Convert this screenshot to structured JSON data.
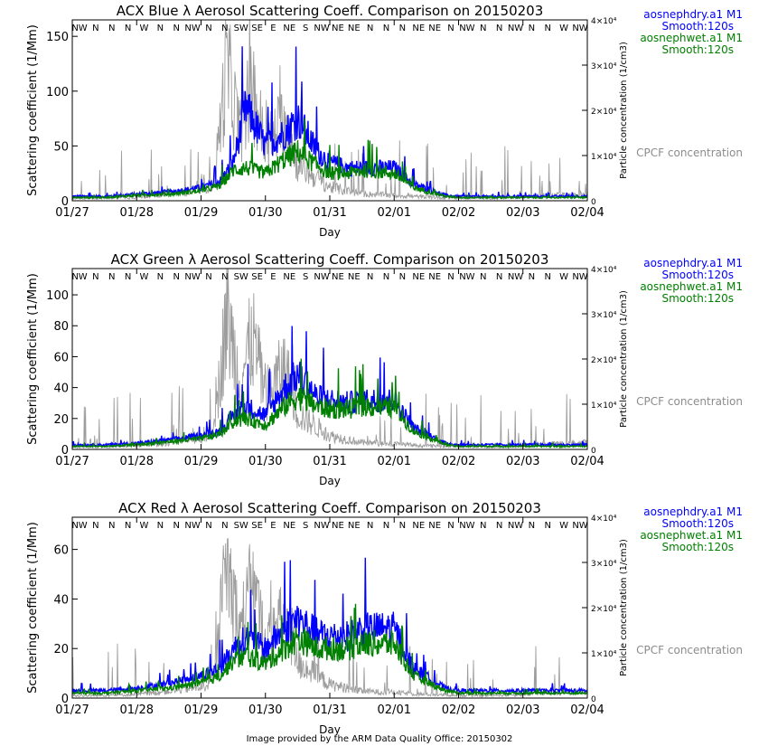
{
  "colors": {
    "dry": "#0000ff",
    "wet": "#008000",
    "cpcf": "#8c8c8c",
    "footer": "#cc0000"
  },
  "wind_labels": [
    "NW",
    "N",
    "N",
    "N",
    "W",
    "N",
    "N",
    "NW",
    "N",
    "N",
    "SW",
    "SE",
    "E",
    "NE",
    "S",
    "NW",
    "NE",
    "NE",
    "N",
    "N",
    "N",
    "NE",
    "NE",
    "N",
    "NW",
    "N",
    "N",
    "NW",
    "N",
    "N",
    "W",
    "NW"
  ],
  "right_axis": {
    "label": "Particle concentration (1/cm3)",
    "ticks": [
      "0",
      "1×10⁴",
      "2×10⁴",
      "3×10⁴",
      "4×10⁴"
    ]
  },
  "legend": {
    "dry_name": "aosnephdry.a1 M1",
    "dry_smooth": "Smooth:120s",
    "wet_name": "aosnephwet.a1 M1",
    "wet_smooth": "Smooth:120s",
    "cpcf": "CPCF concentration"
  },
  "footer": "Image provided by the ARM Data Quality Office: 20150302",
  "chart_data": [
    {
      "type": "line",
      "title": "ACX Blue λ Aerosol Scattering Coeff. Comparison on 20150203",
      "xlabel": "Day",
      "ylabel": "Scattering coefficient (1/Mm)",
      "x_ticks": [
        "01/27",
        "01/28",
        "01/29",
        "01/30",
        "01/31",
        "02/01",
        "02/02",
        "02/03",
        "02/04"
      ],
      "xlim": [
        0,
        8
      ],
      "ylim": [
        0,
        165
      ],
      "y_ticks": [
        0,
        50,
        100,
        150
      ],
      "y2lim": [
        0,
        40000
      ],
      "series": [
        {
          "name": "aosnephdry.a1 M1 (Smooth:120s)",
          "x": [
            0,
            0.5,
            1,
            1.5,
            2,
            2.3,
            2.5,
            2.7,
            3,
            3.3,
            3.5,
            3.8,
            4,
            4.3,
            4.5,
            5,
            5.3,
            5.8,
            6,
            6.5,
            7,
            7.5,
            8
          ],
          "values": [
            4,
            4,
            6,
            8,
            12,
            18,
            35,
            85,
            50,
            62,
            75,
            45,
            35,
            30,
            30,
            30,
            15,
            5,
            4,
            4,
            4,
            4,
            4
          ]
        },
        {
          "name": "aosnephwet.a1 M1 (Smooth:120s)",
          "x": [
            0,
            0.5,
            1,
            1.5,
            2,
            2.3,
            2.5,
            2.7,
            3,
            3.3,
            3.5,
            3.8,
            4,
            4.3,
            4.5,
            5,
            5.3,
            5.8,
            6,
            6.5,
            7,
            7.5,
            8
          ],
          "values": [
            3,
            3,
            5,
            6,
            9,
            14,
            28,
            30,
            25,
            38,
            45,
            32,
            25,
            25,
            28,
            25,
            12,
            4,
            3,
            3,
            3,
            3,
            3
          ]
        },
        {
          "name": "CPCF concentration",
          "axis": "right",
          "x": [
            0,
            0.5,
            1,
            1.5,
            2,
            2.2,
            2.4,
            2.6,
            2.8,
            3,
            3.3,
            3.5,
            4,
            4.5,
            5,
            5.5,
            6,
            6.5,
            7,
            7.5,
            8
          ],
          "values": [
            500,
            600,
            800,
            1500,
            2500,
            4000,
            30000,
            15000,
            25000,
            12000,
            18000,
            8000,
            3000,
            1500,
            1200,
            800,
            600,
            600,
            800,
            1200,
            1500
          ]
        }
      ]
    },
    {
      "type": "line",
      "title": "ACX Green λ Aerosol Scattering Coeff. Comparison on 20150203",
      "xlabel": "Day",
      "ylabel": "Scattering coefficient (1/Mm)",
      "x_ticks": [
        "01/27",
        "01/28",
        "01/29",
        "01/30",
        "01/31",
        "02/01",
        "02/02",
        "02/03",
        "02/04"
      ],
      "xlim": [
        0,
        8
      ],
      "ylim": [
        0,
        117
      ],
      "y_ticks": [
        0,
        20,
        40,
        60,
        80,
        100
      ],
      "y2lim": [
        0,
        40000
      ],
      "series": [
        {
          "name": "aosnephdry.a1 M1 (Smooth:120s)",
          "x": [
            0,
            0.5,
            1,
            1.5,
            2,
            2.3,
            2.5,
            2.7,
            3,
            3.3,
            3.5,
            3.8,
            4,
            4.3,
            4.5,
            5,
            5.3,
            5.8,
            6,
            6.5,
            7,
            7.5,
            8
          ],
          "values": [
            3,
            3,
            4,
            6,
            9,
            12,
            22,
            28,
            22,
            40,
            48,
            34,
            32,
            30,
            32,
            32,
            14,
            4,
            3,
            3,
            3,
            3,
            3
          ]
        },
        {
          "name": "aosnephwet.a1 M1 (Smooth:120s)",
          "x": [
            0,
            0.5,
            1,
            1.5,
            2,
            2.3,
            2.5,
            2.7,
            3,
            3.3,
            3.5,
            3.8,
            4,
            4.3,
            4.5,
            5,
            5.3,
            5.8,
            6,
            6.5,
            7,
            7.5,
            8
          ],
          "values": [
            2,
            2,
            3,
            5,
            7,
            10,
            18,
            20,
            16,
            28,
            34,
            28,
            26,
            26,
            28,
            27,
            12,
            3,
            2,
            2,
            2,
            2,
            2
          ]
        },
        {
          "name": "CPCF concentration",
          "axis": "right",
          "x": [
            0,
            0.5,
            1,
            1.5,
            2,
            2.2,
            2.4,
            2.6,
            2.8,
            3,
            3.3,
            3.5,
            4,
            4.5,
            5,
            5.5,
            6,
            6.5,
            7,
            7.5,
            8
          ],
          "values": [
            500,
            600,
            800,
            1500,
            2500,
            4000,
            30000,
            15000,
            25000,
            12000,
            18000,
            8000,
            3000,
            1500,
            1200,
            800,
            600,
            600,
            800,
            1200,
            1500
          ]
        }
      ]
    },
    {
      "type": "line",
      "title": "ACX Red λ Aerosol Scattering Coeff. Comparison on 20150203",
      "xlabel": "Day",
      "ylabel": "Scattering coefficient (1/Mm)",
      "x_ticks": [
        "01/27",
        "01/28",
        "01/29",
        "01/30",
        "01/31",
        "02/01",
        "02/02",
        "02/03",
        "02/04"
      ],
      "xlim": [
        0,
        8
      ],
      "ylim": [
        0,
        73
      ],
      "y_ticks": [
        0,
        20,
        40,
        60
      ],
      "y2lim": [
        0,
        40000
      ],
      "series": [
        {
          "name": "aosnephdry.a1 M1 (Smooth:120s)",
          "x": [
            0,
            0.5,
            1,
            1.5,
            2,
            2.3,
            2.5,
            2.7,
            3,
            3.3,
            3.5,
            3.8,
            4,
            4.3,
            4.5,
            5,
            5.3,
            5.8,
            6,
            6.5,
            7,
            7.5,
            8
          ],
          "values": [
            3,
            3,
            4,
            6,
            9,
            12,
            20,
            24,
            20,
            28,
            32,
            26,
            25,
            25,
            28,
            28,
            12,
            4,
            3,
            3,
            3,
            3,
            3
          ]
        },
        {
          "name": "aosnephwet.a1 M1 (Smooth:120s)",
          "x": [
            0,
            0.5,
            1,
            1.5,
            2,
            2.3,
            2.5,
            2.7,
            3,
            3.3,
            3.5,
            3.8,
            4,
            4.3,
            4.5,
            5,
            5.3,
            5.8,
            6,
            6.5,
            7,
            7.5,
            8
          ],
          "values": [
            2,
            2,
            3,
            4,
            6,
            9,
            15,
            17,
            14,
            20,
            24,
            20,
            20,
            20,
            22,
            22,
            9,
            3,
            2,
            2,
            2,
            2,
            2
          ]
        },
        {
          "name": "CPCF concentration",
          "axis": "right",
          "x": [
            0,
            0.5,
            1,
            1.5,
            2,
            2.2,
            2.4,
            2.6,
            2.8,
            3,
            3.3,
            3.5,
            4,
            4.5,
            5,
            5.5,
            6,
            6.5,
            7,
            7.5,
            8
          ],
          "values": [
            500,
            600,
            800,
            1500,
            2500,
            4000,
            30000,
            15000,
            25000,
            12000,
            18000,
            8000,
            3000,
            1500,
            1200,
            800,
            600,
            600,
            800,
            1200,
            1500
          ]
        }
      ]
    }
  ]
}
